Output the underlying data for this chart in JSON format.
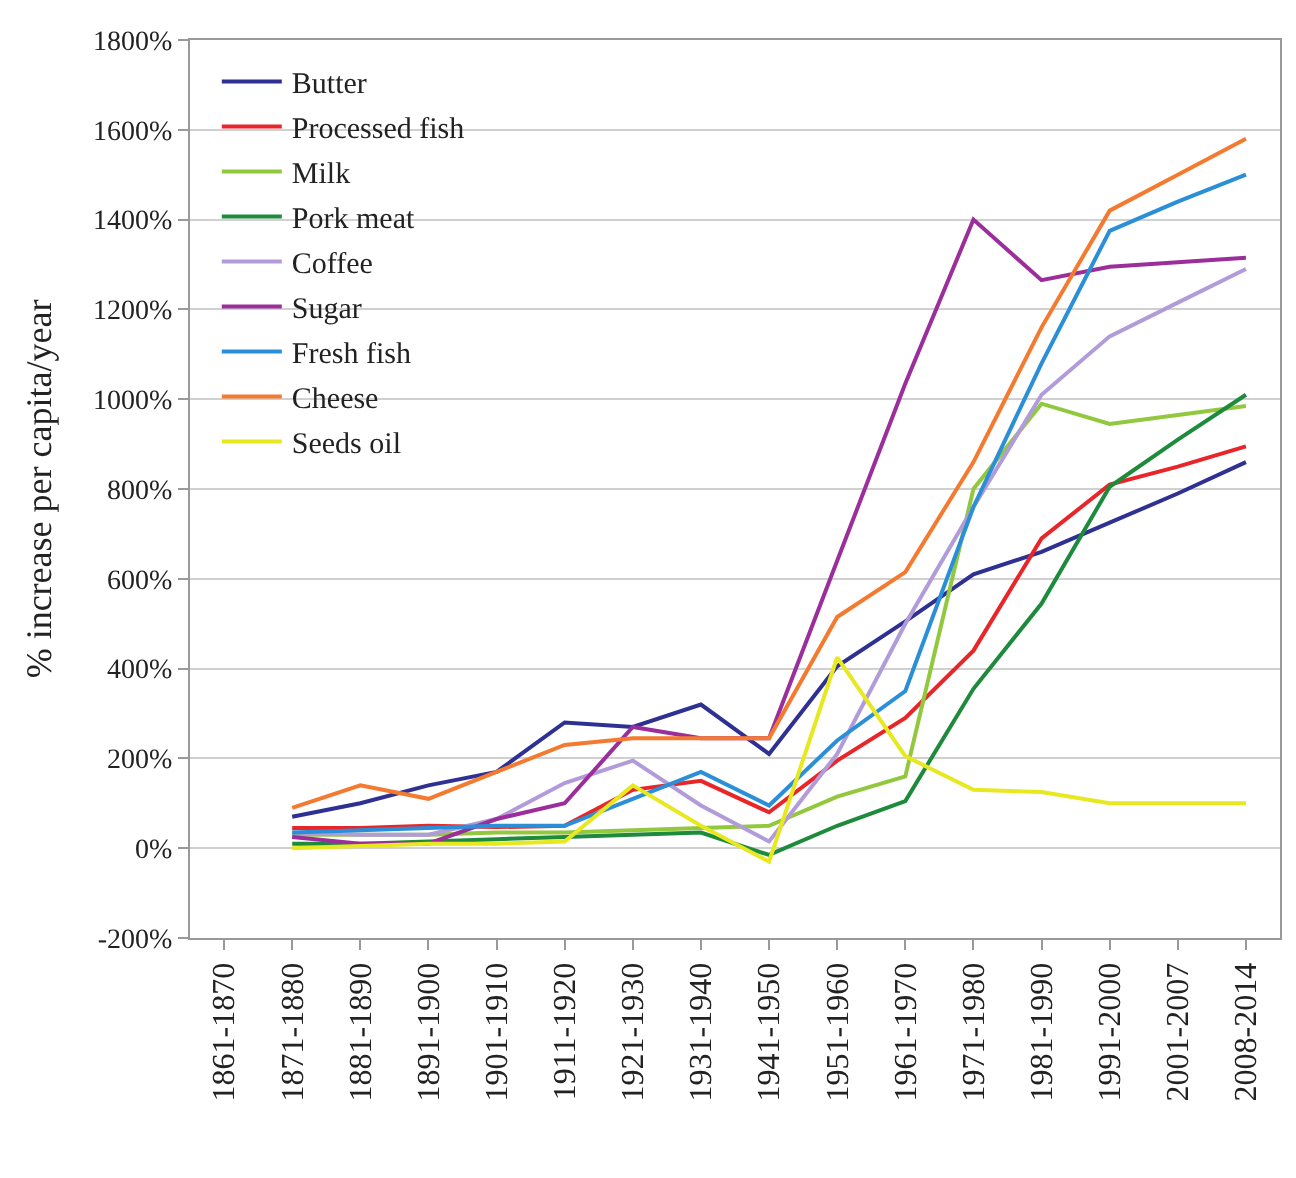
{
  "chart_data": {
    "type": "line",
    "ylabel": "% increase per capita/year",
    "categories": [
      "1861-1870",
      "1871-1880",
      "1881-1890",
      "1891-1900",
      "1901-1910",
      "1911-1920",
      "1921-1930",
      "1931-1940",
      "1941-1950",
      "1951-1960",
      "1961-1970",
      "1971-1980",
      "1981-1990",
      "1991-2000",
      "2001-2007",
      "2008-2014"
    ],
    "series": [
      {
        "name": "Butter",
        "color": "#2e3192",
        "values": [
          null,
          70,
          100,
          140,
          170,
          280,
          270,
          320,
          210,
          405,
          505,
          610,
          660,
          725,
          790,
          860
        ]
      },
      {
        "name": "Processed fish",
        "color": "#e8262a",
        "values": [
          null,
          45,
          45,
          50,
          47,
          50,
          130,
          150,
          80,
          195,
          290,
          440,
          690,
          810,
          850,
          895
        ]
      },
      {
        "name": "Milk",
        "color": "#92c83e",
        "values": [
          null,
          30,
          30,
          30,
          35,
          35,
          40,
          45,
          50,
          115,
          160,
          800,
          990,
          945,
          965,
          985
        ]
      },
      {
        "name": "Pork meat",
        "color": "#1e8a3c",
        "values": [
          null,
          10,
          10,
          15,
          20,
          25,
          30,
          35,
          -15,
          50,
          105,
          355,
          545,
          805,
          910,
          1010
        ]
      },
      {
        "name": "Coffee",
        "color": "#b19cd9",
        "values": [
          null,
          35,
          30,
          30,
          65,
          145,
          195,
          95,
          15,
          210,
          500,
          760,
          1010,
          1140,
          1215,
          1290
        ]
      },
      {
        "name": "Sugar",
        "color": "#9b2e9b",
        "values": [
          null,
          25,
          10,
          10,
          65,
          100,
          270,
          245,
          245,
          640,
          1035,
          1400,
          1265,
          1295,
          1305,
          1315
        ]
      },
      {
        "name": "Fresh fish",
        "color": "#2a8fd6",
        "values": [
          null,
          35,
          40,
          45,
          50,
          50,
          110,
          170,
          95,
          240,
          350,
          760,
          1080,
          1375,
          1440,
          1500
        ]
      },
      {
        "name": "Cheese",
        "color": "#f47a30",
        "values": [
          null,
          90,
          140,
          110,
          170,
          230,
          245,
          245,
          245,
          515,
          615,
          860,
          1160,
          1420,
          1500,
          1580
        ]
      },
      {
        "name": "Seeds oil",
        "color": "#e8e820",
        "values": [
          null,
          0,
          5,
          10,
          10,
          15,
          140,
          50,
          -30,
          425,
          205,
          130,
          125,
          100,
          100,
          100
        ]
      }
    ],
    "ylim": [
      -200,
      1800
    ],
    "yticks": [
      {
        "value": -200,
        "label": "-200%"
      },
      {
        "value": 0,
        "label": "0%"
      },
      {
        "value": 200,
        "label": "200%"
      },
      {
        "value": 400,
        "label": "400%"
      },
      {
        "value": 600,
        "label": "600%"
      },
      {
        "value": 800,
        "label": "800%"
      },
      {
        "value": 1000,
        "label": "1000%"
      },
      {
        "value": 1200,
        "label": "1200%"
      },
      {
        "value": 1400,
        "label": "1400%"
      },
      {
        "value": 1600,
        "label": "1600%"
      },
      {
        "value": 1800,
        "label": "1800%"
      }
    ],
    "grid": "y",
    "legend": "top left",
    "marker": "none",
    "line_style": "solid"
  }
}
